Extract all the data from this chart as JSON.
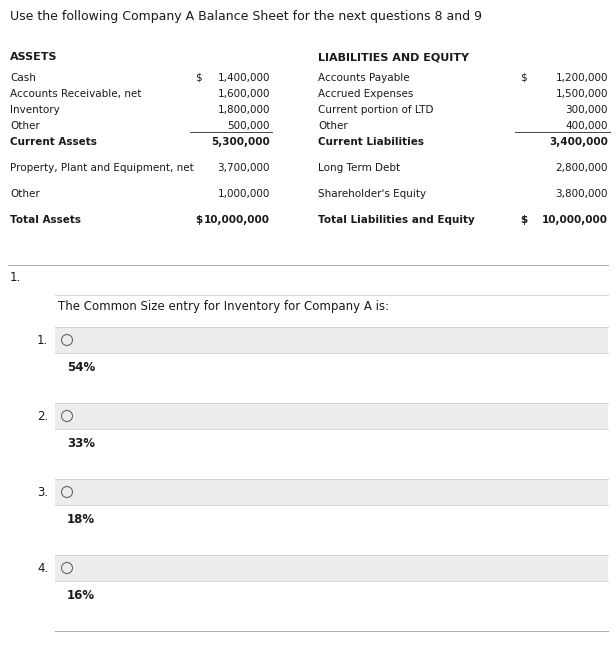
{
  "title": "Use the following Company A Balance Sheet for the next questions 8 and 9",
  "bg_color": "#ffffff",
  "text_color": "#1a1a1a",
  "assets_header": "ASSETS",
  "liabilities_header": "LIABILITIES AND EQUITY",
  "assets_rows": [
    {
      "label": "Cash",
      "dollar": "$",
      "value": "1,400,000",
      "bold": false,
      "line_above": false,
      "spacer": false
    },
    {
      "label": "Accounts Receivable, net",
      "dollar": "",
      "value": "1,600,000",
      "bold": false,
      "line_above": false,
      "spacer": false
    },
    {
      "label": "Inventory",
      "dollar": "",
      "value": "1,800,000",
      "bold": false,
      "line_above": false,
      "spacer": false
    },
    {
      "label": "Other",
      "dollar": "",
      "value": "500,000",
      "bold": false,
      "line_above": false,
      "spacer": false
    },
    {
      "label": "Current Assets",
      "dollar": "",
      "value": "5,300,000",
      "bold": true,
      "line_above": true,
      "spacer": false
    },
    {
      "label": "",
      "dollar": "",
      "value": "",
      "bold": false,
      "line_above": false,
      "spacer": true
    },
    {
      "label": "Property, Plant and Equipment, net",
      "dollar": "",
      "value": "3,700,000",
      "bold": false,
      "line_above": false,
      "spacer": false
    },
    {
      "label": "",
      "dollar": "",
      "value": "",
      "bold": false,
      "line_above": false,
      "spacer": true
    },
    {
      "label": "Other",
      "dollar": "",
      "value": "1,000,000",
      "bold": false,
      "line_above": false,
      "spacer": false
    },
    {
      "label": "",
      "dollar": "",
      "value": "",
      "bold": false,
      "line_above": false,
      "spacer": true
    },
    {
      "label": "Total Assets",
      "dollar": "$",
      "value": "10,000,000",
      "bold": true,
      "line_above": false,
      "spacer": false
    }
  ],
  "liabilities_rows": [
    {
      "label": "Accounts Payable",
      "dollar": "$",
      "value": "1,200,000",
      "bold": false,
      "line_above": false,
      "spacer": false
    },
    {
      "label": "Accrued Expenses",
      "dollar": "",
      "value": "1,500,000",
      "bold": false,
      "line_above": false,
      "spacer": false
    },
    {
      "label": "Current portion of LTD",
      "dollar": "",
      "value": "300,000",
      "bold": false,
      "line_above": false,
      "spacer": false
    },
    {
      "label": "Other",
      "dollar": "",
      "value": "400,000",
      "bold": false,
      "line_above": false,
      "spacer": false
    },
    {
      "label": "Current Liabilities",
      "dollar": "",
      "value": "3,400,000",
      "bold": true,
      "line_above": true,
      "spacer": false
    },
    {
      "label": "",
      "dollar": "",
      "value": "",
      "bold": false,
      "line_above": false,
      "spacer": true
    },
    {
      "label": "Long Term Debt",
      "dollar": "",
      "value": "2,800,000",
      "bold": false,
      "line_above": false,
      "spacer": false
    },
    {
      "label": "",
      "dollar": "",
      "value": "",
      "bold": false,
      "line_above": false,
      "spacer": true
    },
    {
      "label": "Shareholder's Equity",
      "dollar": "",
      "value": "3,800,000",
      "bold": false,
      "line_above": false,
      "spacer": false
    },
    {
      "label": "",
      "dollar": "",
      "value": "",
      "bold": false,
      "line_above": false,
      "spacer": true
    },
    {
      "label": "Total Liabilities and Equity",
      "dollar": "$",
      "value": "10,000,000",
      "bold": true,
      "line_above": false,
      "spacer": false
    }
  ],
  "question_number": "1.",
  "question_text": "The Common Size entry for Inventory for Company A is:",
  "choices": [
    {
      "num": "1.",
      "answer": "54%"
    },
    {
      "num": "2.",
      "answer": "33%"
    },
    {
      "num": "3.",
      "answer": "18%"
    },
    {
      "num": "4.",
      "answer": "16%"
    }
  ],
  "title_fs": 9.0,
  "header_fs": 8.0,
  "row_fs": 7.5,
  "bold_fs": 7.5,
  "q_fs": 8.5,
  "choice_fs": 8.5,
  "answer_fs": 8.5
}
